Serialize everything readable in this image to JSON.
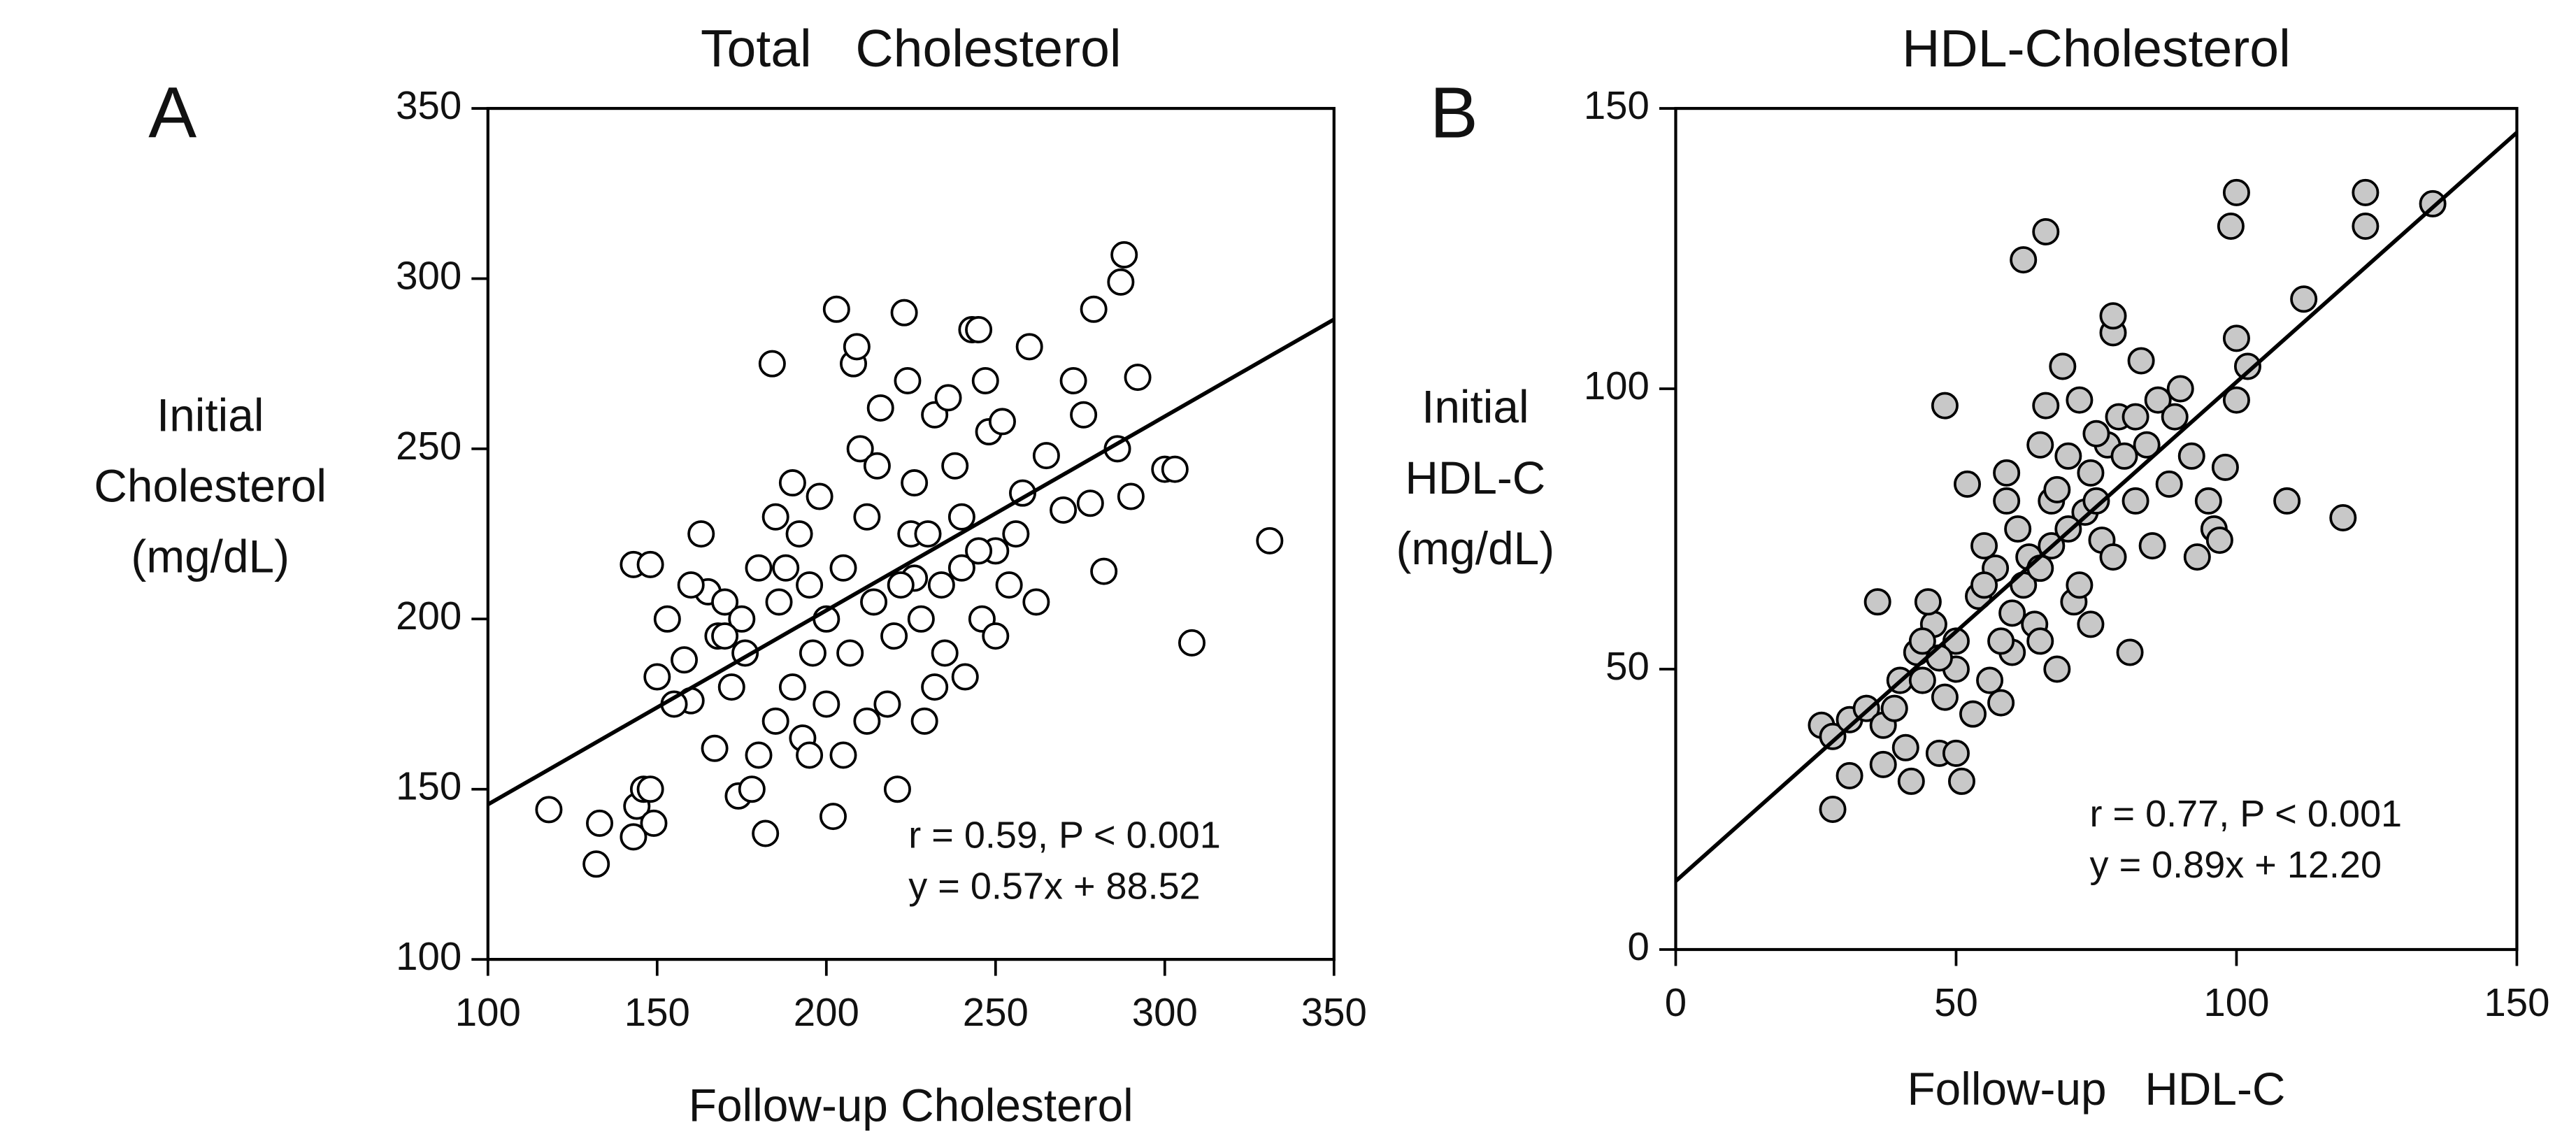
{
  "chart_data": [
    {
      "type": "scatter",
      "panel": "A",
      "title": "Total   Cholesterol",
      "x_label": "Follow-up Cholesterol",
      "y_label": [
        "Initial",
        "Cholesterol",
        "(mg/dL)"
      ],
      "annotation": [
        "r = 0.59, P < 0.001",
        "y = 0.57x + 88.52"
      ],
      "trendline": {
        "slope": 0.57,
        "intercept": 88.52
      },
      "color": "#ffffff",
      "xlim": [
        100,
        350
      ],
      "ylim": [
        100,
        350
      ],
      "xticks": [
        100,
        150,
        200,
        250,
        300,
        350
      ],
      "yticks": [
        100,
        150,
        200,
        250,
        300,
        350
      ],
      "x": [
        118,
        132,
        133,
        143,
        144,
        146,
        148,
        149,
        143,
        148,
        150,
        153,
        158,
        160,
        163,
        165,
        168,
        170,
        172,
        174,
        176,
        178,
        180,
        182,
        184,
        185,
        186,
        188,
        190,
        192,
        193,
        195,
        196,
        198,
        200,
        202,
        203,
        205,
        207,
        208,
        209,
        210,
        212,
        214,
        216,
        218,
        220,
        221,
        223,
        224,
        225,
        226,
        228,
        229,
        230,
        232,
        234,
        236,
        238,
        240,
        241,
        243,
        245,
        246,
        247,
        248,
        250,
        252,
        254,
        256,
        258,
        260,
        262,
        265,
        270,
        273,
        276,
        278,
        279,
        282,
        286,
        287,
        288,
        290,
        292,
        300,
        303,
        308,
        331,
        160,
        167,
        175,
        185,
        190,
        200,
        205,
        215,
        222,
        235,
        240,
        250,
        195,
        180,
        170,
        155,
        212,
        226,
        232,
        245
      ],
      "values": [
        144,
        128,
        140,
        136,
        145,
        150,
        150,
        140,
        216,
        216,
        183,
        200,
        188,
        176,
        225,
        208,
        195,
        205,
        180,
        148,
        190,
        150,
        160,
        137,
        275,
        230,
        205,
        215,
        180,
        225,
        165,
        160,
        190,
        236,
        200,
        142,
        291,
        215,
        190,
        275,
        280,
        250,
        170,
        205,
        262,
        175,
        195,
        150,
        290,
        270,
        225,
        212,
        200,
        170,
        225,
        260,
        210,
        265,
        245,
        230,
        183,
        285,
        285,
        200,
        270,
        255,
        220,
        258,
        210,
        225,
        237,
        280,
        205,
        248,
        232,
        270,
        260,
        234,
        291,
        214,
        250,
        299,
        307,
        236,
        271,
        244,
        244,
        193,
        223,
        210,
        162,
        200,
        170,
        240,
        175,
        160,
        245,
        210,
        190,
        215,
        195,
        210,
        215,
        195,
        175,
        230,
        240,
        180,
        220
      ]
    },
    {
      "type": "scatter",
      "panel": "B",
      "title": "HDL-Cholesterol",
      "x_label": "Follow-up   HDL-C",
      "y_label": [
        "Initial",
        "HDL-C",
        "(mg/dL)"
      ],
      "annotation": [
        "r = 0.77, P < 0.001",
        "y = 0.89x + 12.20"
      ],
      "trendline": {
        "slope": 0.89,
        "intercept": 12.2
      },
      "color": "#c8c8c8",
      "xlim": [
        0,
        150
      ],
      "ylim": [
        0,
        150
      ],
      "xticks": [
        0,
        50,
        100,
        150
      ],
      "yticks": [
        0,
        50,
        100,
        150
      ],
      "x": [
        26,
        28,
        28,
        31,
        31,
        34,
        36,
        37,
        37,
        40,
        41,
        42,
        43,
        44,
        46,
        47,
        48,
        48,
        50,
        50,
        51,
        52,
        54,
        55,
        57,
        58,
        59,
        60,
        61,
        62,
        62,
        64,
        65,
        66,
        66,
        67,
        68,
        69,
        70,
        71,
        72,
        73,
        74,
        75,
        76,
        77,
        78,
        78,
        79,
        80,
        81,
        82,
        83,
        84,
        85,
        86,
        88,
        89,
        90,
        92,
        93,
        95,
        96,
        97,
        98,
        99,
        100,
        100,
        100,
        102,
        109,
        112,
        119,
        123,
        123,
        135,
        45,
        50,
        55,
        58,
        60,
        63,
        65,
        67,
        70,
        72,
        75,
        56,
        53,
        44,
        39,
        47,
        59,
        65,
        78,
        82,
        68,
        74
      ],
      "values": [
        40,
        25,
        38,
        31,
        41,
        43,
        62,
        40,
        33,
        48,
        36,
        30,
        53,
        48,
        58,
        35,
        97,
        45,
        35,
        55,
        30,
        83,
        63,
        72,
        68,
        44,
        80,
        53,
        75,
        65,
        123,
        58,
        90,
        97,
        128,
        72,
        50,
        104,
        88,
        62,
        98,
        78,
        85,
        80,
        73,
        90,
        110,
        113,
        95,
        88,
        53,
        80,
        105,
        90,
        72,
        98,
        83,
        95,
        100,
        88,
        70,
        80,
        75,
        73,
        86,
        129,
        135,
        98,
        109,
        104,
        80,
        116,
        77,
        129,
        135,
        133,
        62,
        50,
        65,
        55,
        60,
        70,
        68,
        80,
        75,
        65,
        92,
        48,
        42,
        55,
        43,
        52,
        85,
        55,
        70,
        95,
        82,
        58
      ]
    }
  ]
}
